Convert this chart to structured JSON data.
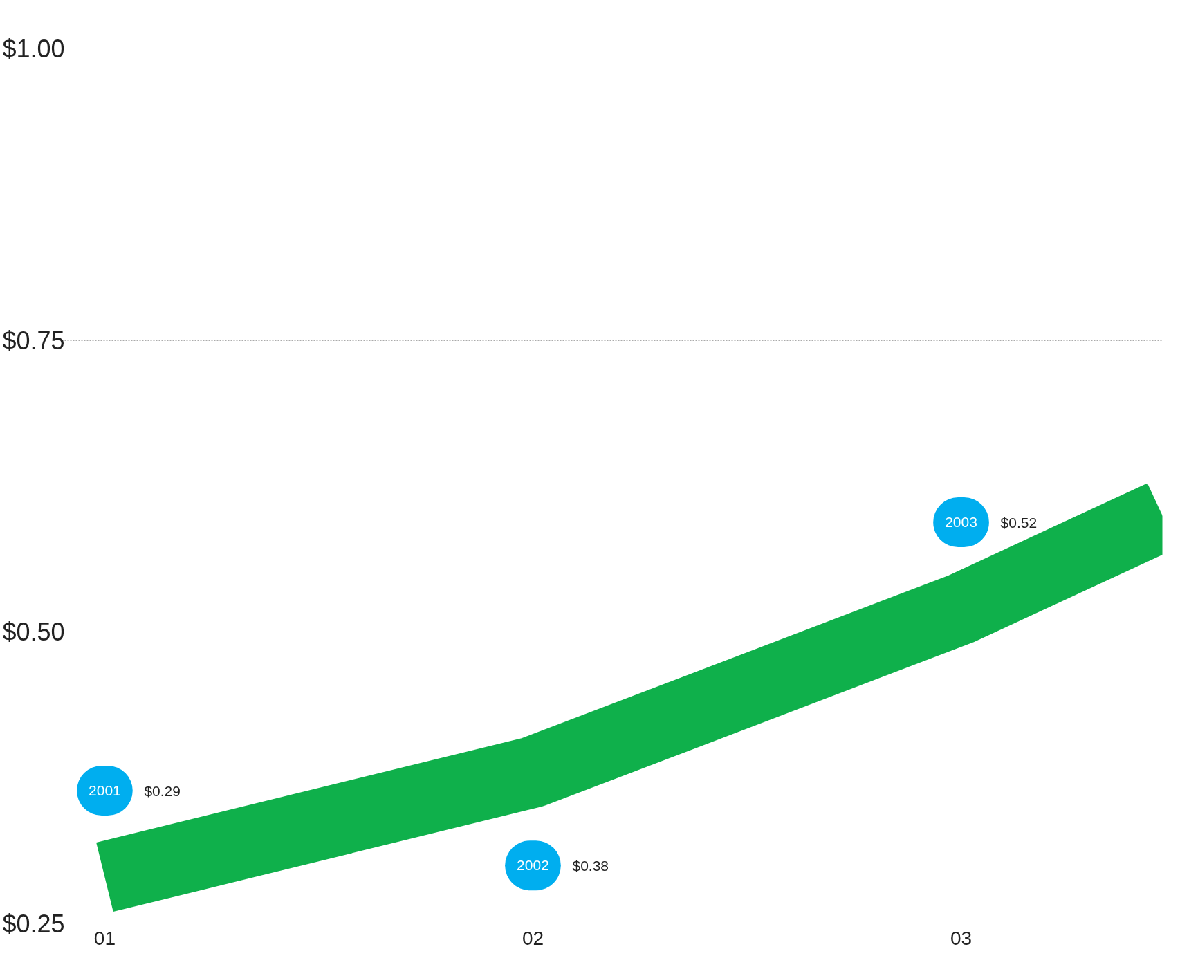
{
  "chart_data": {
    "type": "line",
    "x": [
      2001,
      2002,
      2003,
      2003.47
    ],
    "series": [
      {
        "color": "#0fb04b",
        "values": [
          0.29,
          0.38,
          0.52,
          0.6
        ]
      }
    ],
    "value_labels": [
      "$0.29",
      "$0.38",
      "$0.52",
      null
    ],
    "annotations": [
      "2001",
      "2002",
      "2003"
    ],
    "xlim": [
      2000.9,
      2003.47
    ],
    "ylim": [
      0.25,
      1.0
    ],
    "xticks": [
      {
        "value": 2001,
        "label": "01"
      },
      {
        "value": 2002,
        "label": "02"
      },
      {
        "value": 2003,
        "label": "03"
      }
    ],
    "yticks": [
      {
        "value": 0.25,
        "label": "$0.25"
      },
      {
        "value": 0.5,
        "label": "$0.50"
      },
      {
        "value": 0.75,
        "label": "$0.75"
      },
      {
        "value": 1.0,
        "label": "$1.00"
      }
    ],
    "grid": "y",
    "line_style": "solid",
    "marker": "none"
  }
}
